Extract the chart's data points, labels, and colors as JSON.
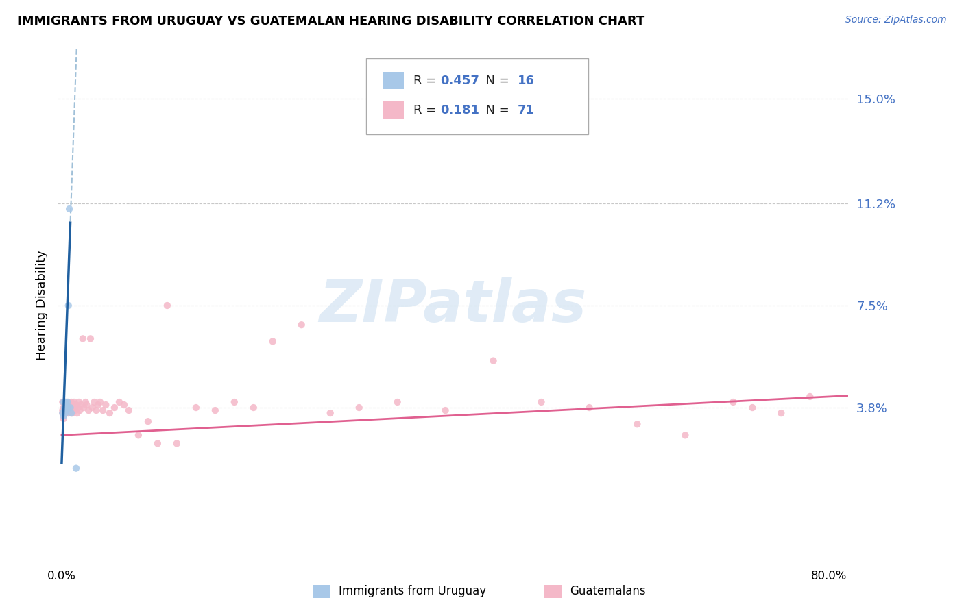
{
  "title": "IMMIGRANTS FROM URUGUAY VS GUATEMALAN HEARING DISABILITY CORRELATION CHART",
  "source_text": "Source: ZipAtlas.com",
  "ylabel": "Hearing Disability",
  "xlim": [
    -0.004,
    0.82
  ],
  "ylim": [
    -0.018,
    0.168
  ],
  "ytick_vals": [
    0.038,
    0.075,
    0.112,
    0.15
  ],
  "ytick_labels": [
    "3.8%",
    "7.5%",
    "11.2%",
    "15.0%"
  ],
  "xtick_vals": [
    0.0,
    0.8
  ],
  "xtick_labels": [
    "0.0%",
    "80.0%"
  ],
  "watermark": "ZIPatlas",
  "uruguay_R": 0.457,
  "uruguay_N": 16,
  "guatemalan_R": 0.181,
  "guatemalan_N": 71,
  "uruguay_dot_color": "#a8c8e8",
  "guatemalan_dot_color": "#f4b8c8",
  "uruguay_line_color": "#2060a0",
  "guatemalan_line_color": "#e06090",
  "dashed_ext_color": "#a0c0d8",
  "grid_color": "#c8c8c8",
  "label_color": "#4472c4",
  "background": "#ffffff",
  "uruguay_x": [
    0.001,
    0.002,
    0.002,
    0.003,
    0.003,
    0.004,
    0.004,
    0.005,
    0.005,
    0.006,
    0.006,
    0.007,
    0.008,
    0.009,
    0.01,
    0.015
  ],
  "uruguay_y": [
    0.036,
    0.035,
    0.04,
    0.037,
    0.038,
    0.036,
    0.04,
    0.037,
    0.039,
    0.038,
    0.04,
    0.075,
    0.11,
    0.038,
    0.036,
    0.016
  ],
  "guatemalan_x": [
    0.001,
    0.001,
    0.001,
    0.002,
    0.002,
    0.003,
    0.003,
    0.004,
    0.004,
    0.005,
    0.005,
    0.006,
    0.006,
    0.007,
    0.007,
    0.008,
    0.009,
    0.01,
    0.01,
    0.011,
    0.012,
    0.013,
    0.014,
    0.015,
    0.016,
    0.017,
    0.018,
    0.019,
    0.02,
    0.022,
    0.023,
    0.025,
    0.026,
    0.028,
    0.03,
    0.032,
    0.034,
    0.036,
    0.038,
    0.04,
    0.043,
    0.046,
    0.05,
    0.055,
    0.06,
    0.065,
    0.07,
    0.08,
    0.09,
    0.1,
    0.11,
    0.12,
    0.14,
    0.16,
    0.18,
    0.2,
    0.22,
    0.25,
    0.28,
    0.31,
    0.35,
    0.4,
    0.45,
    0.5,
    0.55,
    0.6,
    0.65,
    0.7,
    0.72,
    0.75,
    0.78
  ],
  "guatemalan_y": [
    0.036,
    0.04,
    0.037,
    0.038,
    0.034,
    0.039,
    0.036,
    0.04,
    0.037,
    0.038,
    0.036,
    0.039,
    0.037,
    0.04,
    0.036,
    0.038,
    0.039,
    0.037,
    0.04,
    0.036,
    0.038,
    0.04,
    0.037,
    0.039,
    0.036,
    0.038,
    0.04,
    0.037,
    0.039,
    0.063,
    0.038,
    0.04,
    0.039,
    0.037,
    0.063,
    0.038,
    0.04,
    0.037,
    0.039,
    0.04,
    0.037,
    0.039,
    0.036,
    0.038,
    0.04,
    0.039,
    0.037,
    0.028,
    0.033,
    0.025,
    0.075,
    0.025,
    0.038,
    0.037,
    0.04,
    0.038,
    0.062,
    0.068,
    0.036,
    0.038,
    0.04,
    0.037,
    0.055,
    0.04,
    0.038,
    0.032,
    0.028,
    0.04,
    0.038,
    0.036,
    0.042
  ],
  "legend_text_black": "R = ",
  "legend_N_black": "  N = "
}
